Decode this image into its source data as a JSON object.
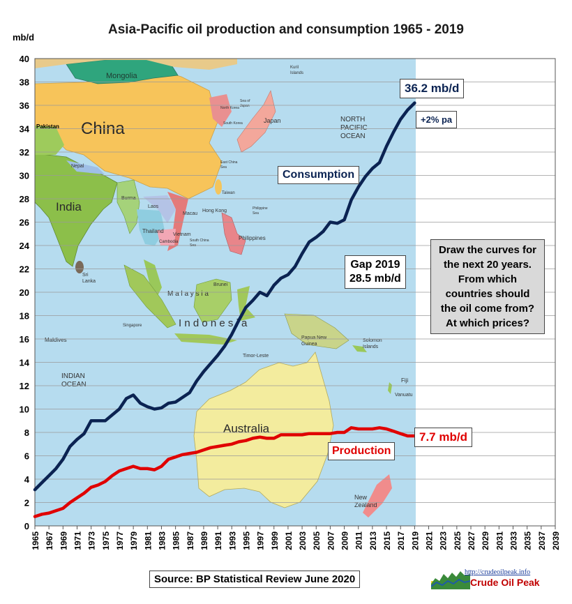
{
  "chart_data": {
    "type": "line",
    "title": "Asia-Pacific oil production and consumption 1965 - 2019",
    "ylabel": "mb/d",
    "xlabel": "",
    "ylim": [
      0,
      40
    ],
    "y_ticks": [
      "0",
      "2",
      "4",
      "6",
      "8",
      "10",
      "12",
      "14",
      "16",
      "18",
      "20",
      "22",
      "24",
      "26",
      "28",
      "30",
      "32",
      "34",
      "36",
      "38",
      "40"
    ],
    "x_range": [
      1965,
      2039
    ],
    "x_ticks": [
      "1965",
      "1967",
      "1969",
      "1971",
      "1973",
      "1975",
      "1977",
      "1979",
      "1981",
      "1983",
      "1985",
      "1987",
      "1989",
      "1991",
      "1993",
      "1995",
      "1997",
      "1999",
      "2001",
      "2003",
      "2005",
      "2007",
      "2009",
      "2011",
      "2013",
      "2015",
      "2017",
      "2019",
      "2021",
      "2023",
      "2025",
      "2027",
      "2029",
      "2031",
      "2033",
      "2035",
      "2037",
      "2039"
    ],
    "grid": true,
    "series": [
      {
        "name": "Consumption",
        "color": "#0b2352",
        "x": [
          1965,
          1966,
          1967,
          1968,
          1969,
          1970,
          1971,
          1972,
          1973,
          1974,
          1975,
          1976,
          1977,
          1978,
          1979,
          1980,
          1981,
          1982,
          1983,
          1984,
          1985,
          1986,
          1987,
          1988,
          1989,
          1990,
          1991,
          1992,
          1993,
          1994,
          1995,
          1996,
          1997,
          1998,
          1999,
          2000,
          2001,
          2002,
          2003,
          2004,
          2005,
          2006,
          2007,
          2008,
          2009,
          2010,
          2011,
          2012,
          2013,
          2014,
          2015,
          2016,
          2017,
          2018,
          2019
        ],
        "values": [
          3.1,
          3.7,
          4.3,
          4.9,
          5.7,
          6.8,
          7.4,
          7.9,
          9.0,
          9.0,
          9.0,
          9.5,
          10.0,
          10.9,
          11.2,
          10.5,
          10.2,
          10.0,
          10.1,
          10.5,
          10.6,
          11.0,
          11.4,
          12.4,
          13.2,
          13.9,
          14.6,
          15.4,
          16.4,
          17.6,
          18.7,
          19.3,
          20.0,
          19.7,
          20.6,
          21.2,
          21.5,
          22.2,
          23.3,
          24.3,
          24.7,
          25.2,
          26.0,
          25.9,
          26.2,
          27.9,
          29.0,
          29.9,
          30.6,
          31.1,
          32.5,
          33.7,
          34.8,
          35.6,
          36.2
        ]
      },
      {
        "name": "Production",
        "color": "#e00000",
        "x": [
          1965,
          1966,
          1967,
          1968,
          1969,
          1970,
          1971,
          1972,
          1973,
          1974,
          1975,
          1976,
          1977,
          1978,
          1979,
          1980,
          1981,
          1982,
          1983,
          1984,
          1985,
          1986,
          1987,
          1988,
          1989,
          1990,
          1991,
          1992,
          1993,
          1994,
          1995,
          1996,
          1997,
          1998,
          1999,
          2000,
          2001,
          2002,
          2003,
          2004,
          2005,
          2006,
          2007,
          2008,
          2009,
          2010,
          2011,
          2012,
          2013,
          2014,
          2015,
          2016,
          2017,
          2018,
          2019
        ],
        "values": [
          0.8,
          1.0,
          1.1,
          1.3,
          1.5,
          2.0,
          2.4,
          2.8,
          3.3,
          3.5,
          3.8,
          4.3,
          4.7,
          4.9,
          5.1,
          4.9,
          4.9,
          4.8,
          5.1,
          5.7,
          5.9,
          6.1,
          6.2,
          6.3,
          6.5,
          6.7,
          6.8,
          6.9,
          7.0,
          7.2,
          7.3,
          7.5,
          7.6,
          7.5,
          7.5,
          7.8,
          7.8,
          7.8,
          7.8,
          7.9,
          7.9,
          7.9,
          7.9,
          8.0,
          8.0,
          8.4,
          8.3,
          8.3,
          8.3,
          8.4,
          8.3,
          8.1,
          7.9,
          7.7,
          7.7
        ]
      }
    ],
    "annotations": {
      "consumption_label": "Consumption",
      "consumption_end": "36.2 mb/d",
      "growth": "+2% pa",
      "gap_line1": "Gap 2019",
      "gap_line2": "28.5 mb/d",
      "question_lines": [
        "Draw the curves for",
        "the next 20 years.",
        "From which",
        "countries should",
        "the oil come from?",
        "At which prices?"
      ],
      "production_label": "Production",
      "production_end": "7.7 mb/d",
      "source": "Source: BP Statistical Review June 2020"
    },
    "background_map_labels": {
      "china": "China",
      "india": "India",
      "australia": "Australia",
      "mongolia": "Mongolia",
      "pakistan": "Pakistan",
      "japan": "Japan",
      "nepal": "Nepal",
      "burma": "Burma",
      "laos": "Laos",
      "thailand": "Thailand",
      "vietnam": "Vietnam",
      "cambodia": "Cambodia",
      "philippines": "Philippines",
      "taiwan": "Taiwan",
      "hong_kong": "Hong Kong",
      "macau": "Macau",
      "sri_lanka": "Sri\nLanka",
      "maldives": "Maldives",
      "indian_ocean": "INDIAN\nOCEAN",
      "north_pacific": "NORTH\nPACIFIC\nOCEAN",
      "indonesia": "I n d o n e s i a",
      "malaysia": "M a l a y s i a",
      "singapore": "Singapore",
      "brunei": "Brunei",
      "timor_leste": "Timor-Leste",
      "papua_new_guinea": "Papua New\nGuinea",
      "solomon_islands": "Solomon\nIslands",
      "vanuatu": "Vanuatu",
      "fiji": "Fiji",
      "new_zealand": "New\nZealand",
      "south_korea": "South Korea",
      "north_korea": "North Korea",
      "south_china_sea": "South China\nSea",
      "east_china_sea": "East China\nSea",
      "philippine_sea": "Philippine\nSea",
      "kuril_islands": "Kuril\nIslands",
      "sea_of_japan": "Sea of\nJapan"
    }
  },
  "branding": {
    "url": "http://crudeoilpeak.info",
    "name": "Crude Oil Peak"
  }
}
